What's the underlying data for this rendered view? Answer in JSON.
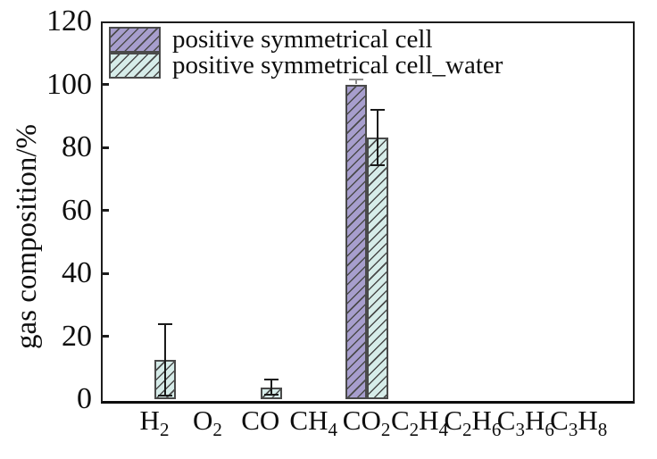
{
  "figure": {
    "background": "#ffffff",
    "frame_color": "#1c1c1c",
    "hatch_color": "#4a4a4a"
  },
  "chart_data": {
    "type": "bar",
    "title": "",
    "xlabel": "",
    "ylabel": "gas composition/%",
    "ylim": [
      0,
      120
    ],
    "yticks": [
      0,
      20,
      40,
      60,
      80,
      100,
      120
    ],
    "grid": false,
    "legend_position": "upper-left",
    "categories": [
      "H2",
      "O2",
      "CO",
      "CH4",
      "CO2",
      "C2H4",
      "C2H6",
      "C3H6",
      "C3H8"
    ],
    "category_display": [
      [
        {
          "t": "H",
          "s": "2"
        }
      ],
      [
        {
          "t": "O",
          "s": "2"
        }
      ],
      [
        {
          "t": "CO",
          "s": ""
        }
      ],
      [
        {
          "t": "CH",
          "s": "4"
        }
      ],
      [
        {
          "t": "CO",
          "s": "2"
        }
      ],
      [
        {
          "t": "C",
          "s": "2"
        },
        {
          "t": "H",
          "s": "4"
        }
      ],
      [
        {
          "t": "C",
          "s": "2"
        },
        {
          "t": "H",
          "s": "6"
        }
      ],
      [
        {
          "t": "C",
          "s": "3"
        },
        {
          "t": "H",
          "s": "6"
        }
      ],
      [
        {
          "t": "C",
          "s": "3"
        },
        {
          "t": "H",
          "s": "8"
        }
      ]
    ],
    "series": [
      {
        "name": "positive symmetrical cell",
        "color": "#a79ecd",
        "hatch": "/",
        "err_color": "#8a8a8a",
        "values": [
          0,
          0,
          0,
          0,
          100,
          0,
          0,
          0,
          0
        ],
        "err_up": [
          0,
          0,
          0,
          0,
          1.5,
          0,
          0,
          0,
          0
        ],
        "err_down": [
          0,
          0,
          0,
          0,
          0,
          0,
          0,
          0,
          0
        ]
      },
      {
        "name": "positive symmetrical cell_water",
        "color": "#d6ece9",
        "hatch": "/",
        "err_color": "#1a1a1a",
        "values": [
          12.5,
          0,
          3.7,
          0,
          83,
          0,
          0,
          0,
          0
        ],
        "err_up": [
          11.3,
          0,
          2.4,
          0,
          8.9,
          0,
          0,
          0,
          0
        ],
        "err_down": [
          11.3,
          0,
          2.2,
          0,
          8.8,
          0,
          0,
          0,
          0
        ]
      }
    ]
  }
}
